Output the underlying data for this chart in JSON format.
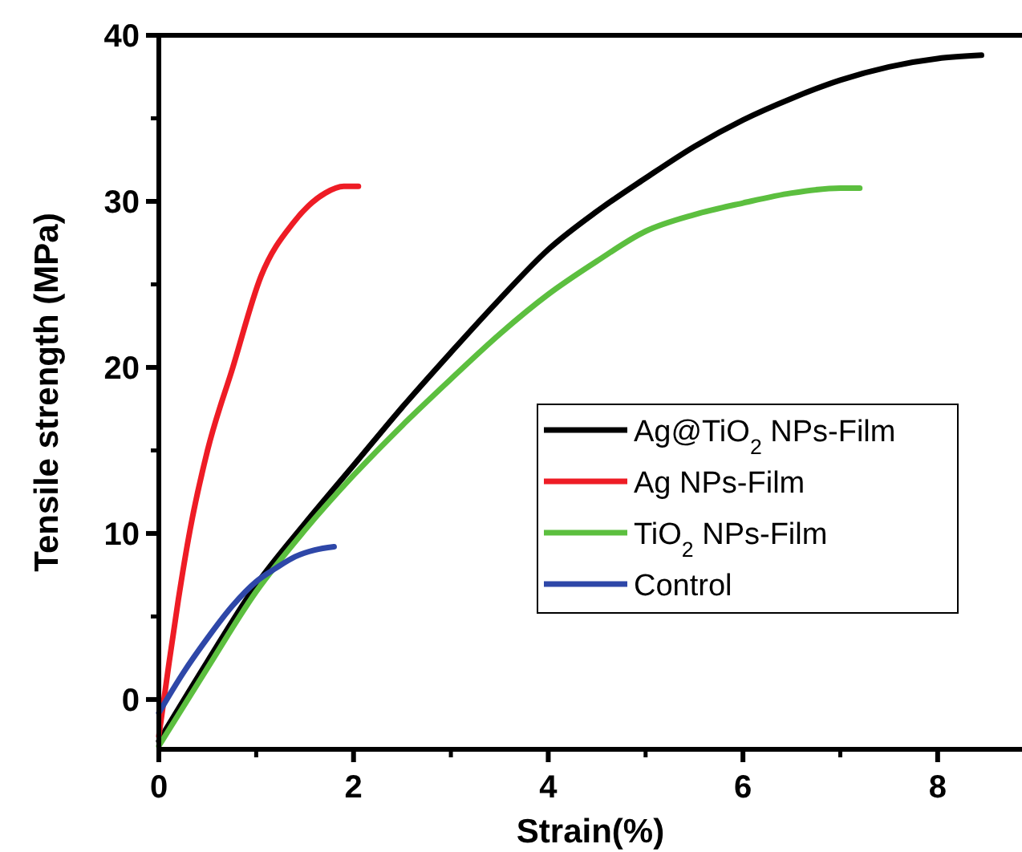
{
  "chart_data": {
    "type": "line",
    "xlabel": "Strain(%)",
    "ylabel": "Tensile strength (MPa)",
    "xlim": [
      0,
      8.85
    ],
    "ylim": [
      -3,
      40
    ],
    "xticks": [
      0,
      2,
      4,
      6,
      8
    ],
    "yticks": [
      0,
      10,
      20,
      30,
      40
    ],
    "grid": false,
    "legend": "right",
    "line_style": "solid",
    "series": [
      {
        "name": "Ag@TiO$_{2}$ NPs-Film",
        "color": "#000000",
        "x": [
          0,
          0.5,
          1,
          1.5,
          2,
          2.5,
          3,
          3.5,
          4,
          4.5,
          5,
          5.5,
          6,
          6.5,
          7,
          7.5,
          8,
          8.45
        ],
        "values": [
          -2.5,
          2.3,
          6.9,
          10.6,
          14.1,
          17.6,
          20.9,
          24.1,
          27.1,
          29.4,
          31.4,
          33.3,
          34.9,
          36.2,
          37.3,
          38.1,
          38.6,
          38.8
        ]
      },
      {
        "name": "Ag NPs-Film",
        "color": "#ee1c25",
        "x": [
          0,
          0.1,
          0.2,
          0.32,
          0.5,
          0.76,
          1.05,
          1.38,
          1.71,
          1.9,
          2.05
        ],
        "values": [
          -2.2,
          2,
          6,
          10.2,
          15,
          20,
          25.5,
          28.7,
          30.5,
          30.9,
          30.9
        ]
      },
      {
        "name": "TiO$_{2}$ NPs-Film",
        "color": "#5cbf3f",
        "x": [
          0,
          0.5,
          1,
          1.5,
          2,
          2.5,
          3,
          3.5,
          4,
          4.5,
          5,
          5.5,
          6,
          6.5,
          7,
          7.2
        ],
        "values": [
          -2.8,
          1.9,
          6.5,
          10.2,
          13.5,
          16.5,
          19.3,
          22,
          24.4,
          26.4,
          28.2,
          29.2,
          29.9,
          30.5,
          30.8,
          30.8
        ]
      },
      {
        "name": "Control",
        "color": "#2e47a8",
        "x": [
          0,
          0.25,
          0.5,
          0.75,
          1,
          1.2,
          1.4,
          1.6,
          1.8
        ],
        "values": [
          -0.8,
          1.6,
          3.7,
          5.6,
          7.1,
          7.9,
          8.6,
          9,
          9.2
        ]
      }
    ]
  }
}
